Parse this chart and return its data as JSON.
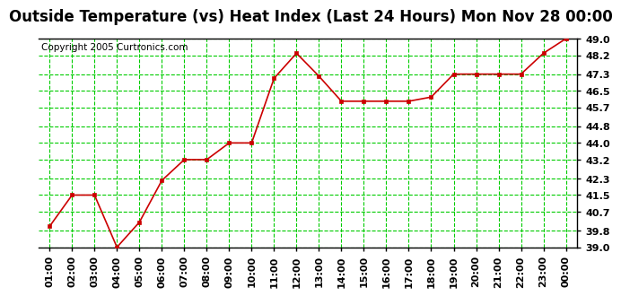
{
  "title": "Outside Temperature (vs) Heat Index (Last 24 Hours) Mon Nov 28 00:00",
  "copyright": "Copyright 2005 Curtronics.com",
  "x_labels": [
    "01:00",
    "02:00",
    "03:00",
    "04:00",
    "05:00",
    "06:00",
    "07:00",
    "08:00",
    "09:00",
    "10:00",
    "11:00",
    "12:00",
    "13:00",
    "14:00",
    "15:00",
    "16:00",
    "17:00",
    "18:00",
    "19:00",
    "20:00",
    "21:00",
    "22:00",
    "23:00",
    "00:00"
  ],
  "y_values": [
    40.0,
    41.5,
    41.5,
    39.0,
    40.2,
    42.2,
    43.2,
    43.2,
    44.0,
    44.0,
    47.1,
    48.3,
    47.2,
    46.0,
    46.0,
    46.0,
    46.0,
    46.2,
    47.3,
    47.3,
    47.3,
    47.3,
    48.3,
    49.0
  ],
  "ylim_min": 39.0,
  "ylim_max": 49.0,
  "y_ticks": [
    39.0,
    39.8,
    40.7,
    41.5,
    42.3,
    43.2,
    44.0,
    44.8,
    45.7,
    46.5,
    47.3,
    48.2,
    49.0
  ],
  "line_color": "#cc0000",
  "marker_color": "#cc0000",
  "bg_color": "#ffffff",
  "plot_bg_color": "#ffffff",
  "grid_color": "#00cc00",
  "title_fontsize": 12,
  "tick_fontsize": 8,
  "copyright_fontsize": 7.5
}
